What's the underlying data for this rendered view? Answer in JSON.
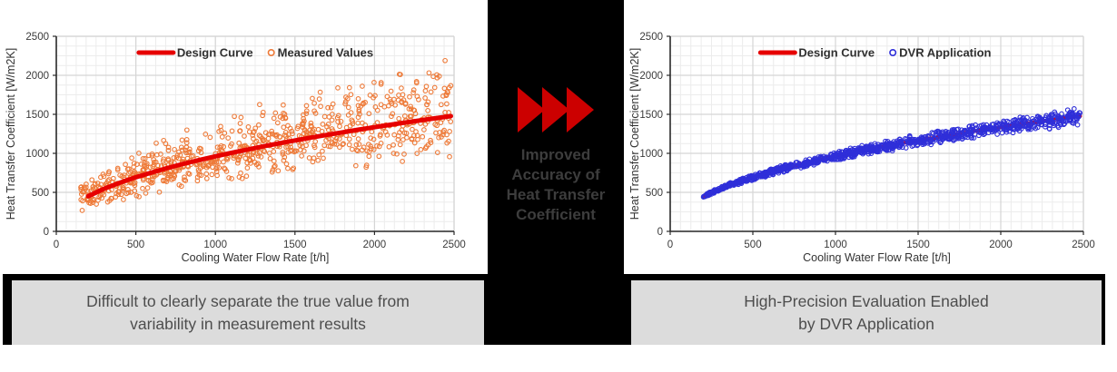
{
  "middle": {
    "arrow_icon": "triple-right-arrows",
    "arrow_color": "#cc0000",
    "text": "Improved\nAccuracy of\nHeat Transfer\nCoefficient"
  },
  "left_caption": "Difficult to clearly separate the true value from\nvariability in measurement results",
  "right_caption": "High-Precision Evaluation Enabled\nby DVR Application",
  "colors": {
    "design_curve": "#e60000",
    "measured_values": "#ee7a38",
    "dvr_application": "#2f2fd9",
    "caption_box": "#dcdcdc",
    "caption_text": "#4d4d4d",
    "middle_background": "#000000"
  },
  "chart_data": [
    {
      "type": "scatter",
      "panel": "left",
      "title": "",
      "xlabel": "Cooling Water Flow Rate [t/h]",
      "ylabel": "Heat Transfer Coefficient [W/m2K]",
      "xlim": [
        0,
        2500
      ],
      "ylim": [
        0,
        2500
      ],
      "xticks": [
        0,
        500,
        1000,
        1500,
        2000,
        2500
      ],
      "yticks": [
        0,
        500,
        1000,
        1500,
        2000,
        2500
      ],
      "grid": {
        "on": true,
        "minor_x_step": 62.5,
        "minor_y_step": 125,
        "major_step": 500
      },
      "legend": {
        "position": "top-center-inside",
        "items": [
          {
            "label": "Design Curve",
            "marker": "line",
            "color": "#e60000"
          },
          {
            "label": "Measured Values",
            "marker": "open-circle",
            "color": "#ee7a38"
          }
        ]
      },
      "design_curve": {
        "name": "Design Curve",
        "color": "#e60000",
        "stroke_width": 5,
        "x": [
          200,
          300,
          400,
          500,
          600,
          700,
          800,
          900,
          1000,
          1100,
          1200,
          1300,
          1400,
          1500,
          1600,
          1700,
          1800,
          1900,
          2000,
          2100,
          2200,
          2300,
          2400,
          2480
        ],
        "y": [
          450,
          545,
          624,
          693,
          755,
          813,
          866,
          915,
          962,
          1006,
          1048,
          1089,
          1128,
          1165,
          1201,
          1236,
          1270,
          1303,
          1335,
          1366,
          1396,
          1426,
          1455,
          1477
        ]
      },
      "scatter": {
        "name": "Measured Values",
        "marker": "open-circle",
        "color": "#ee7a38",
        "n_points": 820,
        "x_range": [
          150,
          2480
        ],
        "noise": {
          "type": "triangular-relative",
          "up": 0.52,
          "down": 0.4,
          "grow_with_x": 0.0
        },
        "seed": 42,
        "note": "wide random spread of measured points around the design curve (values estimated from pixels)"
      },
      "curve_on_top": true
    },
    {
      "type": "scatter",
      "panel": "right",
      "title": "",
      "xlabel": "Cooling Water Flow Rate [t/h]",
      "ylabel": "Heat Transfer Coefficient [W/m2K]",
      "xlim": [
        0,
        2500
      ],
      "ylim": [
        0,
        2500
      ],
      "xticks": [
        0,
        500,
        1000,
        1500,
        2000,
        2500
      ],
      "yticks": [
        0,
        500,
        1000,
        1500,
        2000,
        2500
      ],
      "grid": {
        "on": true,
        "minor_x_step": 62.5,
        "minor_y_step": 125,
        "major_step": 500
      },
      "legend": {
        "position": "top-center-inside",
        "items": [
          {
            "label": "Design Curve",
            "marker": "line",
            "color": "#e60000"
          },
          {
            "label": "DVR Application",
            "marker": "open-circle",
            "color": "#2f2fd9"
          }
        ]
      },
      "design_curve": {
        "name": "Design Curve",
        "color": "#e60000",
        "stroke_width": 4,
        "x": [
          200,
          300,
          400,
          500,
          600,
          700,
          800,
          900,
          1000,
          1100,
          1200,
          1300,
          1400,
          1500,
          1600,
          1700,
          1800,
          1900,
          2000,
          2100,
          2200,
          2300,
          2400,
          2480
        ],
        "y": [
          450,
          545,
          624,
          693,
          755,
          813,
          866,
          915,
          962,
          1006,
          1048,
          1089,
          1128,
          1165,
          1201,
          1236,
          1270,
          1303,
          1335,
          1366,
          1396,
          1426,
          1455,
          1477
        ]
      },
      "scatter": {
        "name": "DVR Application",
        "marker": "open-circle",
        "color": "#2f2fd9",
        "n_points": 1080,
        "x_range": [
          200,
          2480
        ],
        "noise": {
          "type": "triangular-relative",
          "up": 0.05,
          "down": 0.05,
          "grow_with_x": 0.04
        },
        "seed": 1337,
        "note": "tight band of DVR-reconciled points hugging the design curve (values estimated from pixels)"
      },
      "curve_on_top": false
    }
  ]
}
